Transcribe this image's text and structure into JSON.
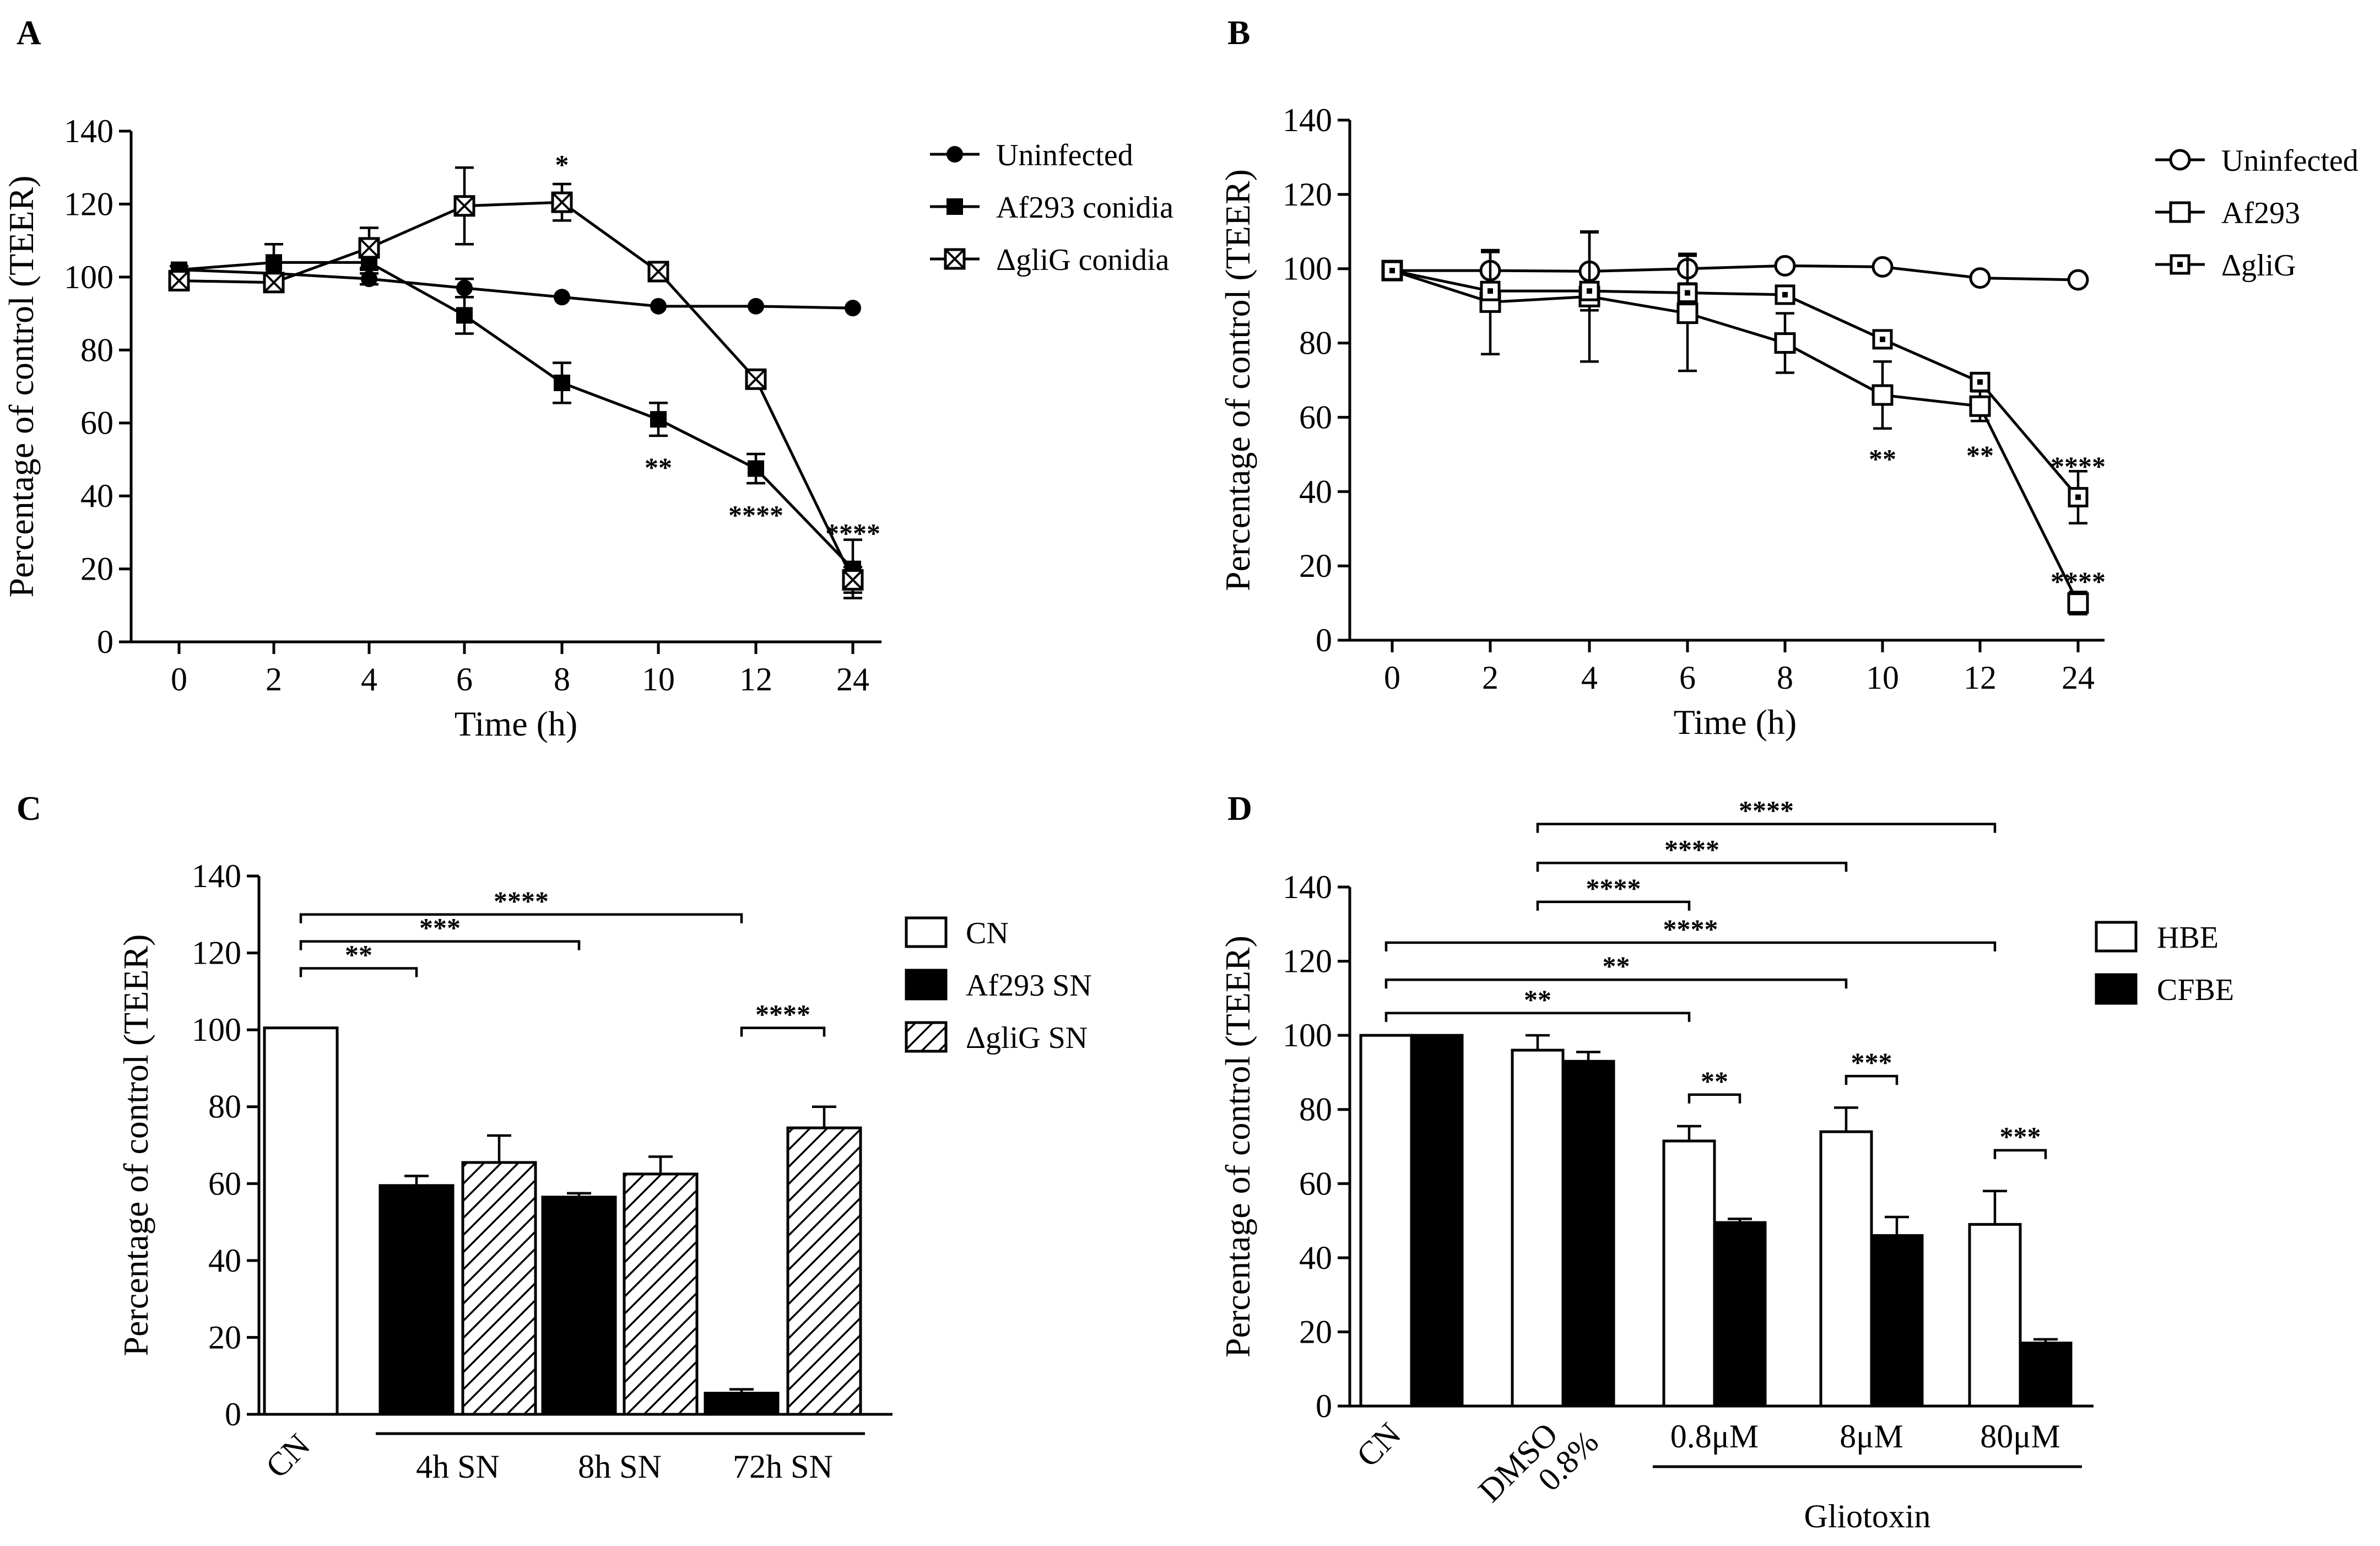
{
  "chart_data": [
    {
      "panel": "A",
      "type": "line",
      "xlabel": "Time (h)",
      "ylabel": "Percentage of control (TEER)",
      "ylim": [
        0,
        140
      ],
      "yticks": [
        0,
        20,
        40,
        60,
        80,
        100,
        120,
        140
      ],
      "categories": [
        "0",
        "2",
        "4",
        "6",
        "8",
        "10",
        "12",
        "24"
      ],
      "legend_position": "top-right",
      "series": [
        {
          "name": "Uninfected",
          "marker": "filled-circle",
          "values": [
            102,
            101,
            99.5,
            97,
            94.5,
            92,
            92,
            91.5
          ],
          "errors": [
            0,
            0,
            1.5,
            2.5,
            0,
            0,
            0,
            0
          ]
        },
        {
          "name": "Af293 conidia",
          "marker": "filled-square",
          "values": [
            102,
            104,
            104,
            89.5,
            71,
            61,
            47.5,
            20
          ],
          "errors": [
            1,
            5,
            2,
            5,
            5.5,
            4.5,
            4,
            8
          ]
        },
        {
          "name": "ΔgliG conidia",
          "marker": "crossed-square",
          "values": [
            99,
            98.5,
            108,
            119.5,
            120.5,
            101.5,
            72,
            17
          ],
          "errors": [
            1,
            2,
            5.5,
            10.5,
            5,
            2,
            2,
            3.5
          ]
        }
      ],
      "annotations": [
        {
          "text": "*",
          "x": "8",
          "y": 131
        },
        {
          "text": "**",
          "x": "10",
          "y": 48
        },
        {
          "text": "****",
          "x": "12",
          "y": 35
        },
        {
          "text": "****",
          "x": "24",
          "y": 30
        }
      ]
    },
    {
      "panel": "B",
      "type": "line",
      "xlabel": "Time (h)",
      "ylabel": "Percentage of control (TEER)",
      "ylim": [
        0,
        140
      ],
      "yticks": [
        0,
        20,
        40,
        60,
        80,
        100,
        120,
        140
      ],
      "categories": [
        "0",
        "2",
        "4",
        "6",
        "8",
        "10",
        "12",
        "24"
      ],
      "legend_position": "top-right",
      "series": [
        {
          "name": "Uninfected",
          "marker": "open-circle",
          "values": [
            99.5,
            99.5,
            99.3,
            100,
            100.8,
            100.5,
            97.5,
            97
          ],
          "errors": [
            0,
            5,
            10.5,
            4,
            0,
            0,
            0,
            0
          ]
        },
        {
          "name": "Af293",
          "marker": "open-square",
          "values": [
            99.5,
            91,
            92.5,
            88,
            80,
            66,
            63,
            10
          ],
          "errors": [
            0,
            14,
            17.5,
            15.5,
            8,
            9,
            4,
            3
          ]
        },
        {
          "name": "ΔgliG",
          "marker": "dotted-square",
          "values": [
            99.5,
            94,
            94,
            93.5,
            93,
            81,
            69.5,
            38.5
          ],
          "errors": [
            0,
            0,
            0,
            0,
            0,
            0,
            0,
            7
          ]
        }
      ],
      "annotations": [
        {
          "text": "**",
          "x": "10",
          "y": 49
        },
        {
          "text": "**",
          "x": "12",
          "y": 50
        },
        {
          "text": "****",
          "x": "24",
          "y": 47
        },
        {
          "text": "****",
          "x": "24",
          "y": 16
        }
      ]
    },
    {
      "panel": "C",
      "type": "bar",
      "ylabel": "Percentage of control (TEER)",
      "ylim": [
        0,
        140
      ],
      "yticks": [
        0,
        20,
        40,
        60,
        80,
        100,
        120,
        140
      ],
      "groups": [
        "CN",
        "4h SN",
        "8h SN",
        "72h SN"
      ],
      "legend_position": "right",
      "series": [
        {
          "name": "CN",
          "fill": "white",
          "values": [
            100.5,
            null,
            null,
            null
          ],
          "errors": [
            0,
            null,
            null,
            null
          ]
        },
        {
          "name": "Af293 SN",
          "fill": "black",
          "values": [
            null,
            59.5,
            56.5,
            5.5
          ],
          "errors": [
            null,
            2.5,
            1,
            1
          ]
        },
        {
          "name": "ΔgliG SN",
          "fill": "hatched",
          "values": [
            null,
            65.5,
            62.5,
            74.5
          ],
          "errors": [
            null,
            7,
            4.5,
            5.5
          ]
        }
      ],
      "comparisons": [
        {
          "text": "**",
          "from": "CN",
          "to": "4h SN",
          "y": 116
        },
        {
          "text": "***",
          "from": "CN",
          "to": "8h SN",
          "y": 123
        },
        {
          "text": "****",
          "from": "CN",
          "to": "72h SN",
          "y": 130
        },
        {
          "text": "****",
          "from": "72h SN Af293",
          "to": "72h SN ΔgliG",
          "y": 100.5
        }
      ]
    },
    {
      "panel": "D",
      "type": "bar",
      "ylabel": "Percentage of control (TEER)",
      "ylim": [
        0,
        140
      ],
      "yticks": [
        0,
        20,
        40,
        60,
        80,
        100,
        120,
        140
      ],
      "groups": [
        "CN",
        "DMSO 0.8%",
        "0.8μM",
        "8μM",
        "80μM"
      ],
      "group_caption": "Gliotoxin",
      "legend_position": "right",
      "series": [
        {
          "name": "HBE",
          "fill": "white",
          "values": [
            100,
            96,
            71.5,
            74,
            49
          ],
          "errors": [
            0,
            4,
            4,
            6.5,
            9
          ]
        },
        {
          "name": "CFBE",
          "fill": "black",
          "values": [
            100,
            93,
            49.5,
            46,
            17
          ],
          "errors": [
            0,
            2.5,
            1,
            5,
            1
          ]
        }
      ],
      "comparisons": [
        {
          "text": "****",
          "from": "DMSO 0.8%",
          "to": "80μM HBE",
          "y": 157
        },
        {
          "text": "****",
          "from": "DMSO 0.8%",
          "to": "8μM HBE",
          "y": 146.5
        },
        {
          "text": "****",
          "from": "DMSO 0.8%",
          "to": "0.8μM HBE",
          "y": 136
        },
        {
          "text": "****",
          "from": "CN",
          "to": "80μM HBE",
          "y": 125
        },
        {
          "text": "**",
          "from": "CN",
          "to": "8μM HBE",
          "y": 115
        },
        {
          "text": "**",
          "from": "CN",
          "to": "0.8μM HBE",
          "y": 106
        },
        {
          "text": "**",
          "from": "0.8μM HBE",
          "to": "0.8μM CFBE",
          "y": 84
        },
        {
          "text": "***",
          "from": "8μM HBE",
          "to": "8μM CFBE",
          "y": 89
        },
        {
          "text": "***",
          "from": "80μM HBE",
          "to": "80μM CFBE",
          "y": 69
        }
      ]
    }
  ]
}
